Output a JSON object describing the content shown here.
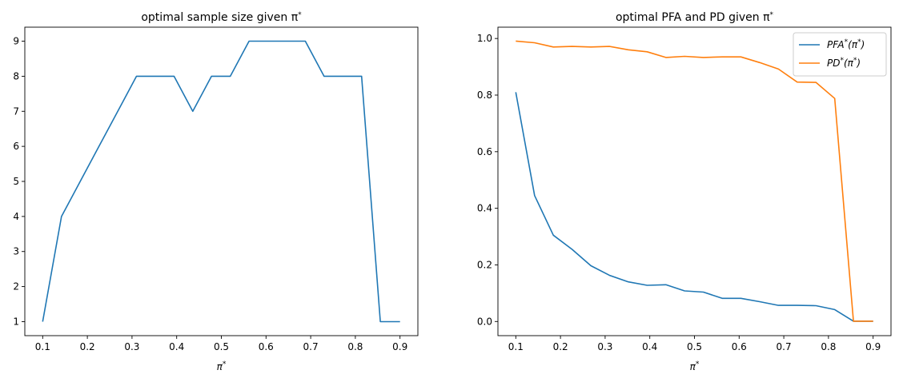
{
  "chart_data": [
    {
      "type": "line",
      "title": "optimal sample size given π*",
      "xlabel": "π*",
      "ylabel": "",
      "xlim": [
        0.06,
        0.94
      ],
      "ylim": [
        0.6,
        9.4
      ],
      "xticks": [
        "0.1",
        "0.2",
        "0.3",
        "0.4",
        "0.5",
        "0.6",
        "0.7",
        "0.8",
        "0.9"
      ],
      "yticks": [
        "1",
        "2",
        "3",
        "4",
        "5",
        "6",
        "7",
        "8",
        "9"
      ],
      "legend": null,
      "grid": false,
      "series": [
        {
          "color": "#1f77b4",
          "x": [
            0.1,
            0.142,
            0.184,
            0.226,
            0.268,
            0.31,
            0.352,
            0.394,
            0.436,
            0.478,
            0.52,
            0.562,
            0.604,
            0.646,
            0.688,
            0.73,
            0.772,
            0.814,
            0.856,
            0.9
          ],
          "values": [
            1,
            4,
            5,
            6,
            7,
            8,
            8,
            8,
            7,
            8,
            8,
            9,
            9,
            9,
            9,
            8,
            8,
            8,
            1,
            1
          ]
        }
      ]
    },
    {
      "type": "line",
      "title": "optimal PFA and PD given π*",
      "xlabel": "π*",
      "ylabel": "",
      "xlim": [
        0.06,
        0.94
      ],
      "ylim": [
        -0.05,
        1.04
      ],
      "xticks": [
        "0.1",
        "0.2",
        "0.3",
        "0.4",
        "0.5",
        "0.6",
        "0.7",
        "0.8",
        "0.9"
      ],
      "yticks": [
        "0.0",
        "0.2",
        "0.4",
        "0.6",
        "0.8",
        "1.0"
      ],
      "legend": "top-right",
      "grid": false,
      "series": [
        {
          "name": "PFA*(π*)",
          "color": "#1f77b4",
          "x": [
            0.1,
            0.142,
            0.184,
            0.226,
            0.268,
            0.31,
            0.352,
            0.394,
            0.436,
            0.478,
            0.52,
            0.562,
            0.604,
            0.646,
            0.688,
            0.73,
            0.772,
            0.814,
            0.856,
            0.9
          ],
          "values": [
            0.81,
            0.445,
            0.305,
            0.255,
            0.197,
            0.163,
            0.14,
            0.128,
            0.13,
            0.108,
            0.104,
            0.082,
            0.082,
            0.07,
            0.057,
            0.057,
            0.056,
            0.042,
            0.001,
            0.001
          ]
        },
        {
          "name": "PD*(π*)",
          "color": "#ff7f0e",
          "x": [
            0.1,
            0.142,
            0.184,
            0.226,
            0.268,
            0.31,
            0.352,
            0.394,
            0.436,
            0.478,
            0.52,
            0.562,
            0.604,
            0.646,
            0.688,
            0.73,
            0.772,
            0.814,
            0.856,
            0.9
          ],
          "values": [
            0.991,
            0.985,
            0.97,
            0.972,
            0.97,
            0.972,
            0.96,
            0.953,
            0.933,
            0.937,
            0.933,
            0.935,
            0.935,
            0.915,
            0.892,
            0.846,
            0.845,
            0.788,
            0.001,
            0.001
          ]
        }
      ]
    }
  ]
}
